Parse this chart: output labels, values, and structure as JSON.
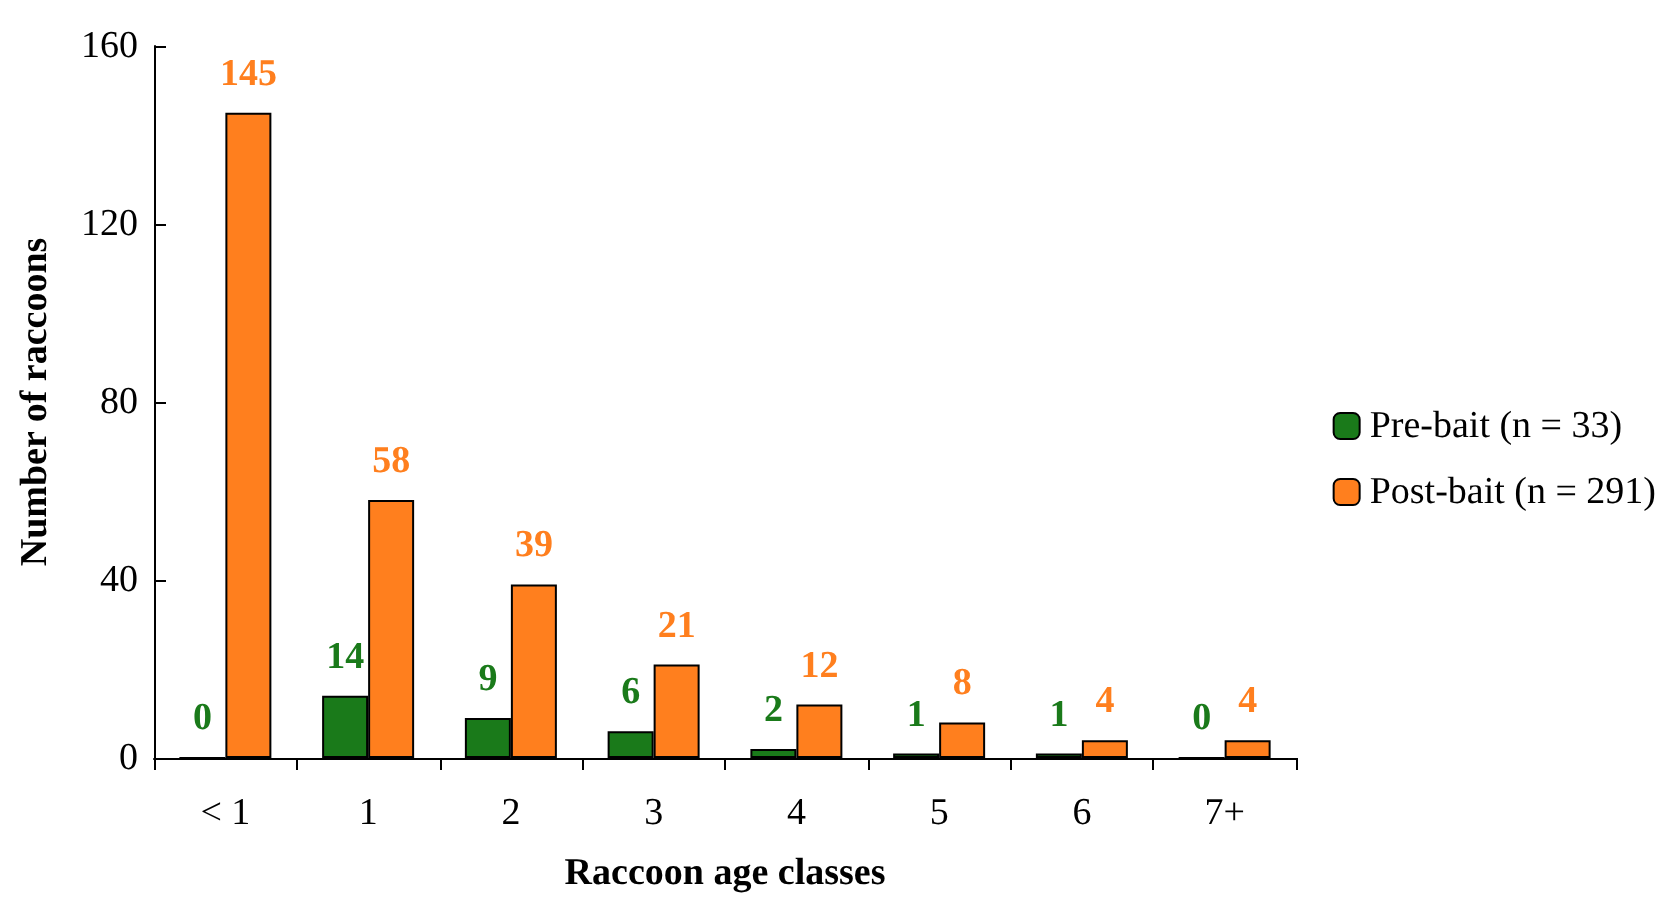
{
  "chart_data": {
    "type": "bar",
    "xlabel": "Raccoon age classes",
    "ylabel": "Number of raccoons",
    "categories": [
      "< 1",
      "1",
      "2",
      "3",
      "4",
      "5",
      "6",
      "7+"
    ],
    "series": [
      {
        "name": "Pre-bait (n = 33)",
        "color": "#1a7a1a",
        "values": [
          0,
          14,
          9,
          6,
          2,
          1,
          1,
          0
        ]
      },
      {
        "name": "Post-bait (n = 291)",
        "color": "#ff7f1e",
        "values": [
          145,
          58,
          39,
          21,
          12,
          8,
          4,
          4
        ]
      }
    ],
    "ylim": [
      0,
      160
    ],
    "yticks": [
      0,
      40,
      80,
      120,
      160
    ],
    "grid": false,
    "legend": "right",
    "data_labels": true
  }
}
